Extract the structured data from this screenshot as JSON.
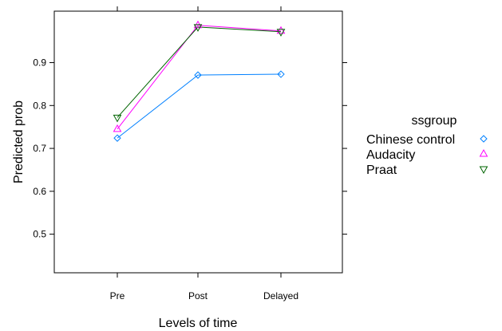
{
  "chart_data": {
    "type": "line",
    "xlabel": "Levels of time",
    "ylabel": "Predicted prob",
    "categories": [
      "Pre",
      "Post",
      "Delayed"
    ],
    "yticks": [
      "0.5",
      "0.6",
      "0.7",
      "0.8",
      "0.9"
    ],
    "ylim": [
      0.41,
      1.02
    ],
    "grid": false,
    "legend": {
      "title": "ssgroup",
      "placement": "right"
    },
    "series": [
      {
        "name": "Chinese control",
        "values": [
          0.724,
          0.871,
          0.873
        ],
        "color": "#0080ff",
        "marker": "diamond"
      },
      {
        "name": "Audacity",
        "values": [
          0.745,
          0.987,
          0.974
        ],
        "color": "#ff00ff",
        "marker": "triangle-up"
      },
      {
        "name": "Praat",
        "values": [
          0.772,
          0.983,
          0.972
        ],
        "color": "#006400",
        "marker": "triangle-down"
      }
    ]
  }
}
